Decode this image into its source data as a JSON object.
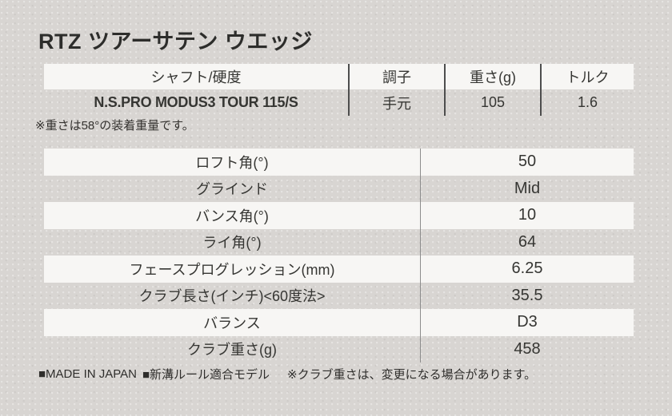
{
  "title": "RTZ ツアーサテン ウエッジ",
  "shaft_table": {
    "headers": [
      "シャフト/硬度",
      "調子",
      "重さ(g)",
      "トルク"
    ],
    "row": {
      "shaft": "N.S.PRO MODUS3 TOUR 115/S",
      "kick_point": "手元",
      "weight_g": "105",
      "torque": "1.6"
    }
  },
  "note": "※重さは58°の装着重量です。",
  "spec_table": {
    "rows": [
      {
        "label": "ロフト角(°)",
        "value": "50"
      },
      {
        "label": "グラインド",
        "value": "Mid"
      },
      {
        "label": "バンス角(°)",
        "value": "10"
      },
      {
        "label": "ライ角(°)",
        "value": "64"
      },
      {
        "label": "フェースプログレッション(mm)",
        "value": "6.25"
      },
      {
        "label": "クラブ長さ(インチ)<60度法>",
        "value": "35.5"
      },
      {
        "label": "バランス",
        "value": "D3"
      },
      {
        "label": "クラブ重さ(g)",
        "value": "458"
      }
    ]
  },
  "footer": {
    "made_in_japan": "■MADE IN JAPAN",
    "groove_rule": "■新溝ルール適合モデル",
    "weight_note": "※クラブ重さは、変更になる場合があります。"
  },
  "colors": {
    "background": "#d8d5d2",
    "row_highlight": "#f7f6f4",
    "text": "#363633",
    "divider_dark": "#4d4d4d",
    "divider_light": "#8c8c8c"
  }
}
